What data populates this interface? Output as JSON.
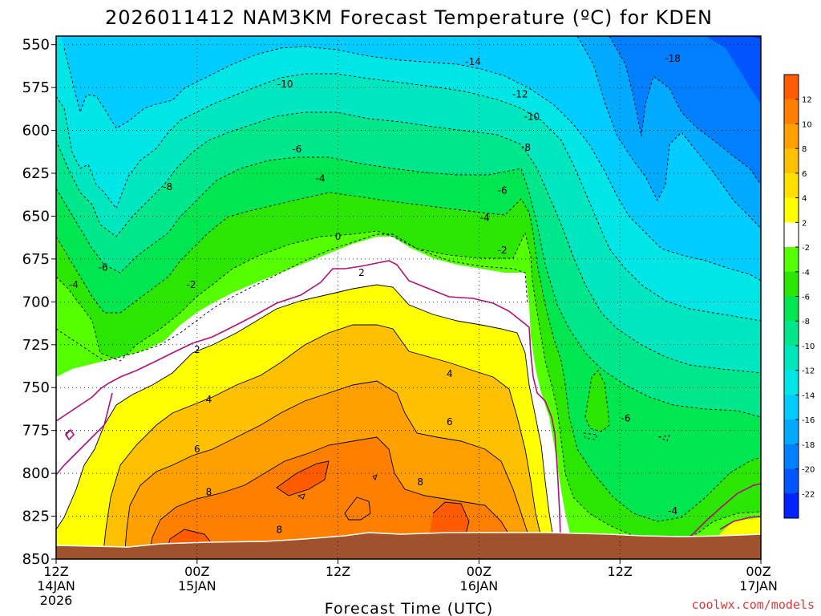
{
  "chart_data": {
    "type": "heatmap",
    "title": "2026011412 NAM3KM Forecast Temperature (ºC) for KDEN",
    "xlabel": "Forecast Time (UTC)",
    "ylabel": "",
    "y_ticks": [
      "550",
      "575",
      "600",
      "625",
      "650",
      "675",
      "700",
      "725",
      "750",
      "775",
      "800",
      "825",
      "850"
    ],
    "ylim": [
      850,
      545
    ],
    "x_ticks": [
      {
        "hour": 0,
        "line1": "12Z",
        "line2": "14JAN",
        "line3": "2026"
      },
      {
        "hour": 12,
        "line1": "00Z",
        "line2": "15JAN",
        "line3": ""
      },
      {
        "hour": 24,
        "line1": "12Z",
        "line2": "",
        "line3": ""
      },
      {
        "hour": 36,
        "line1": "00Z",
        "line2": "16JAN",
        "line3": ""
      },
      {
        "hour": 48,
        "line1": "12Z",
        "line2": "",
        "line3": ""
      },
      {
        "hour": 60,
        "line1": "00Z",
        "line2": "17JAN",
        "line3": ""
      }
    ],
    "xlim": [
      0,
      60
    ],
    "grid": true,
    "colorbar": {
      "labels": [
        "12",
        "10",
        "8",
        "6",
        "4",
        "2",
        "-2",
        "-4",
        "-6",
        "-8",
        "-10",
        "-12",
        "-14",
        "-16",
        "-18",
        "-20",
        "-22"
      ],
      "colors": [
        "#ff5c00",
        "#ff8000",
        "#ffa000",
        "#ffc000",
        "#ffe000",
        "#ffff00",
        "#ffffff",
        "#55ff00",
        "#2ae600",
        "#00e650",
        "#00e68a",
        "#00e6bf",
        "#00e6e6",
        "#00ccff",
        "#00aaff",
        "#0080ff",
        "#0055ff",
        "#0022ff"
      ]
    },
    "ground_color": "#a0522d",
    "legend_position": "right",
    "contour_labels": [
      {
        "text": "-14",
        "hour": 35.5,
        "p": 560
      },
      {
        "text": "-18",
        "hour": 52.5,
        "p": 558
      },
      {
        "text": "-10",
        "hour": 19.5,
        "p": 573
      },
      {
        "text": "-12",
        "hour": 39.5,
        "p": 579
      },
      {
        "text": "-10",
        "hour": 40.5,
        "p": 592
      },
      {
        "text": "-8",
        "hour": 40.0,
        "p": 610
      },
      {
        "text": "-6",
        "hour": 20.5,
        "p": 611
      },
      {
        "text": "-8",
        "hour": 9.5,
        "p": 633
      },
      {
        "text": "-4",
        "hour": 22.5,
        "p": 628
      },
      {
        "text": "-6",
        "hour": 38.0,
        "p": 635
      },
      {
        "text": "-4",
        "hour": 36.5,
        "p": 651
      },
      {
        "text": "0",
        "hour": 24.0,
        "p": 662
      },
      {
        "text": "-2",
        "hour": 38.0,
        "p": 670
      },
      {
        "text": "-6",
        "hour": 4.0,
        "p": 680
      },
      {
        "text": "-4",
        "hour": 1.5,
        "p": 690
      },
      {
        "text": "2",
        "hour": 26.0,
        "p": 683
      },
      {
        "text": "-2",
        "hour": 11.5,
        "p": 690
      },
      {
        "text": "2",
        "hour": 12.0,
        "p": 728
      },
      {
        "text": "4",
        "hour": 33.5,
        "p": 742
      },
      {
        "text": "4",
        "hour": 13.0,
        "p": 757
      },
      {
        "text": "-6",
        "hour": 48.5,
        "p": 768
      },
      {
        "text": "6",
        "hour": 33.5,
        "p": 770
      },
      {
        "text": "6",
        "hour": 12.0,
        "p": 786
      },
      {
        "text": "8",
        "hour": 31.0,
        "p": 805
      },
      {
        "text": "8",
        "hour": 13.0,
        "p": 811
      },
      {
        "text": "-4",
        "hour": 52.5,
        "p": 822
      },
      {
        "text": "8",
        "hour": 19.0,
        "p": 833
      }
    ]
  },
  "credit": "coolwx.com/models"
}
